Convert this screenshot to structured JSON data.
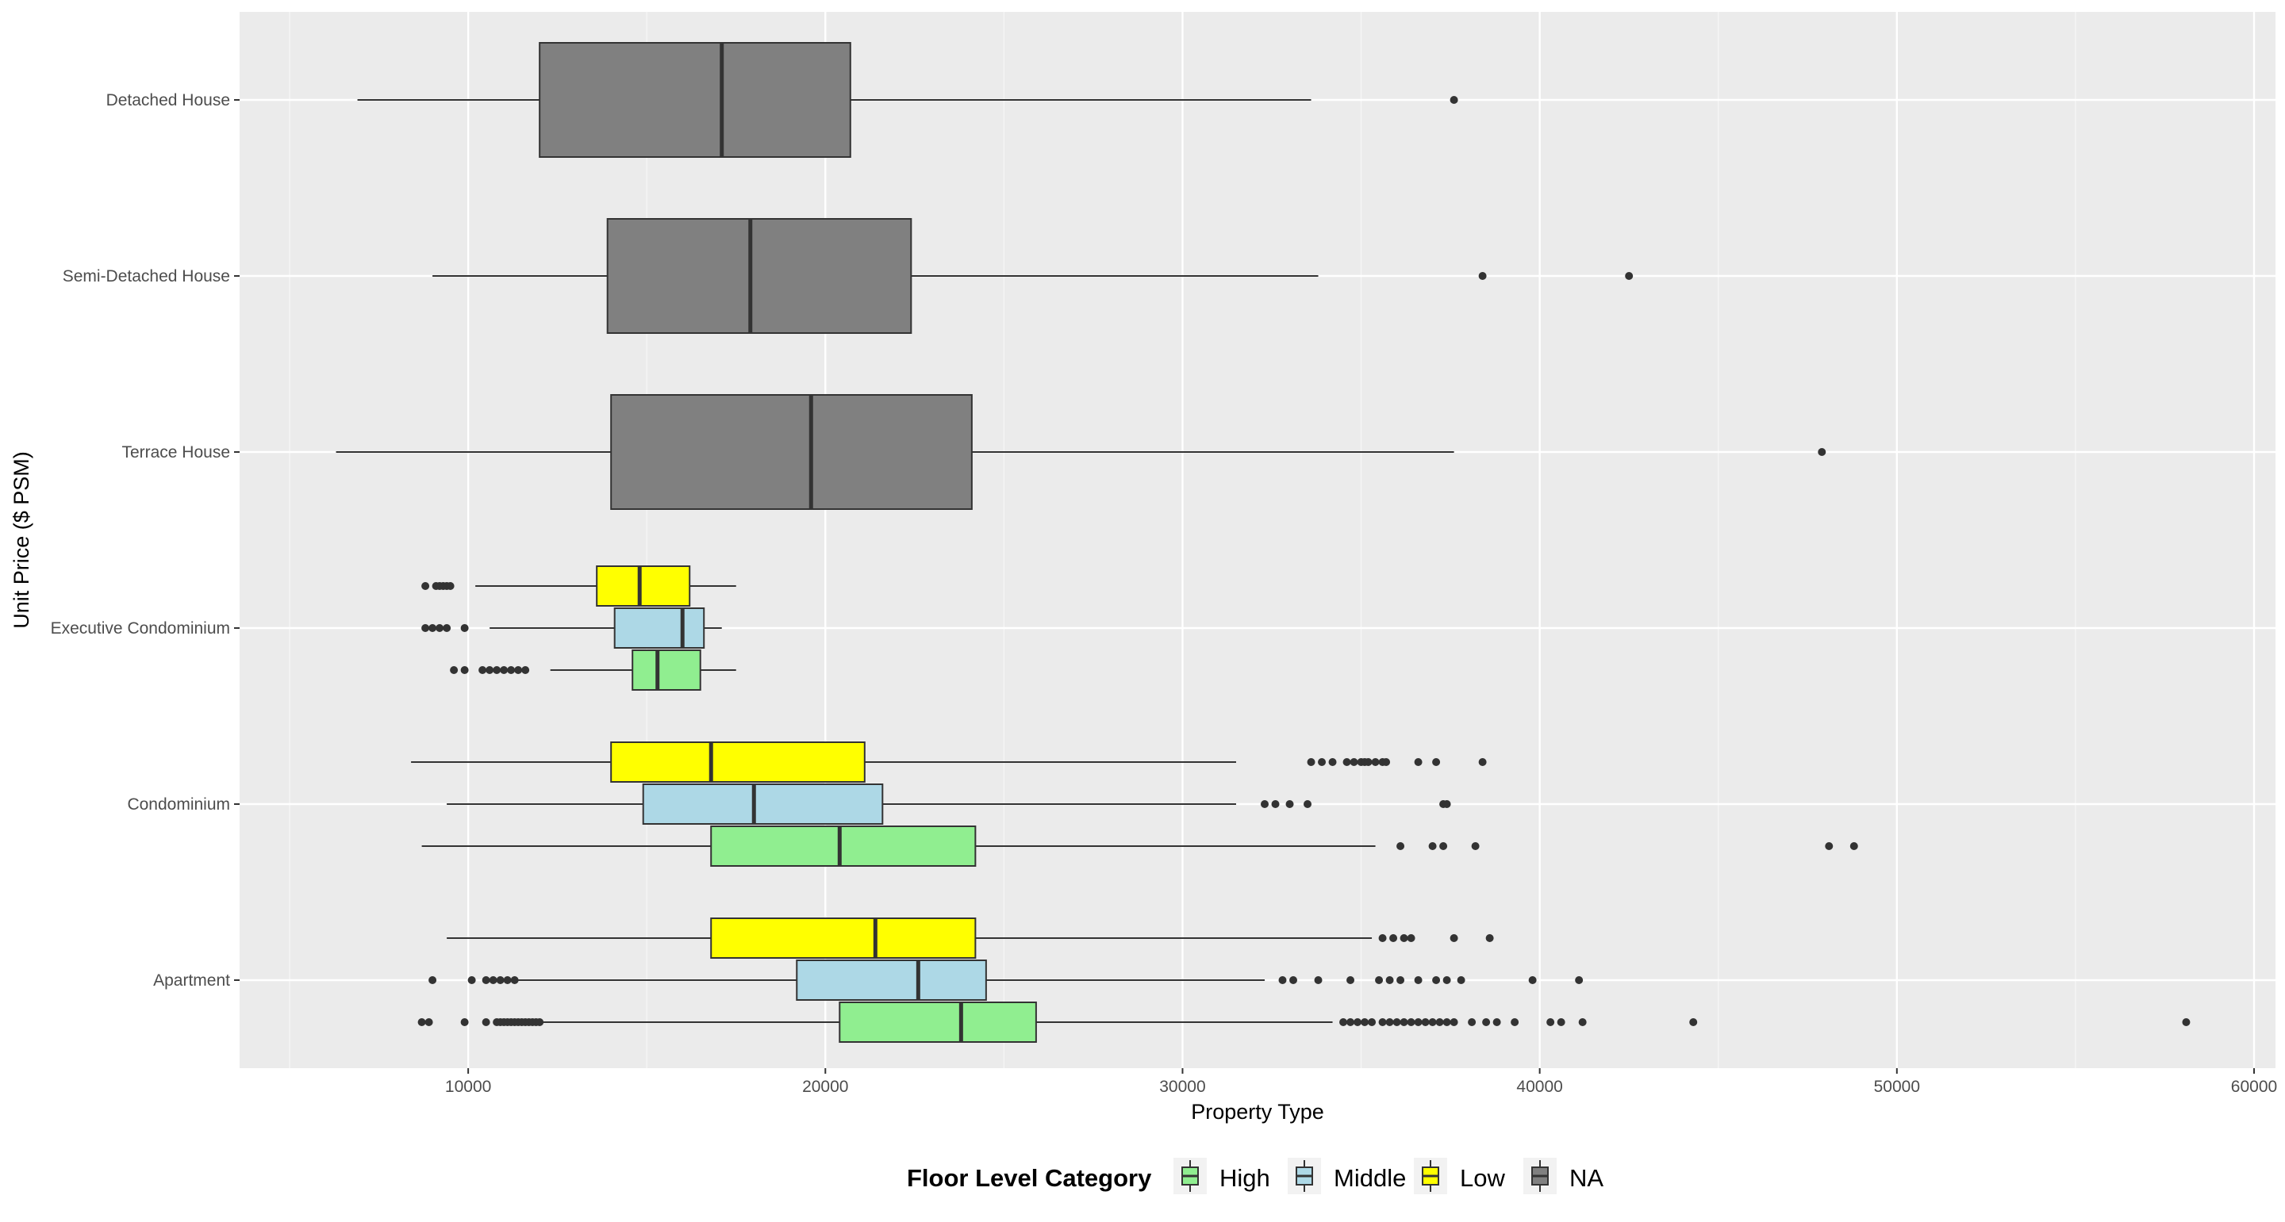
{
  "chart_data": {
    "type": "boxplot",
    "orientation": "horizontal",
    "xlabel": "Property Type",
    "ylabel": "Unit Price ($ PSM)",
    "xlim": [
      3600,
      60600
    ],
    "x_ticks": [
      10000,
      20000,
      30000,
      40000,
      50000,
      60000
    ],
    "categories": [
      "Detached House",
      "Semi-Detached House",
      "Terrace House",
      "Executive Condominium",
      "Condominium",
      "Apartment"
    ],
    "grid": true,
    "legend": {
      "title": "Floor Level Category",
      "position": "bottom",
      "items": [
        {
          "label": "High",
          "color": "#90EE90"
        },
        {
          "label": "Middle",
          "color": "#ADD8E6"
        },
        {
          "label": "Low",
          "color": "#FFFF00"
        },
        {
          "label": "NA",
          "color": "#808080"
        }
      ]
    },
    "boxes": [
      {
        "category": "Detached House",
        "group": "NA",
        "whisker_low": 6900,
        "q1": 12000,
        "median": 17100,
        "q3": 20700,
        "whisker_high": 33600,
        "outliers": [
          37600
        ]
      },
      {
        "category": "Semi-Detached House",
        "group": "NA",
        "whisker_low": 9000,
        "q1": 13900,
        "median": 17900,
        "q3": 22400,
        "whisker_high": 33800,
        "outliers": [
          38400,
          42500
        ]
      },
      {
        "category": "Terrace House",
        "group": "NA",
        "whisker_low": 6300,
        "q1": 14000,
        "median": 19600,
        "q3": 24100,
        "whisker_high": 37600,
        "outliers": [
          47900
        ]
      },
      {
        "category": "Executive Condominium",
        "group": "Low",
        "whisker_low": 10200,
        "q1": 13600,
        "median": 14800,
        "q3": 16200,
        "whisker_high": 17500,
        "outliers": [
          8800,
          9100,
          9200,
          9300,
          9400,
          9500
        ]
      },
      {
        "category": "Executive Condominium",
        "group": "Middle",
        "whisker_low": 10600,
        "q1": 14100,
        "median": 16000,
        "q3": 16600,
        "whisker_high": 17100,
        "outliers": [
          8800,
          9000,
          9200,
          9400,
          9900
        ]
      },
      {
        "category": "Executive Condominium",
        "group": "High",
        "whisker_low": 12300,
        "q1": 14600,
        "median": 15300,
        "q3": 16500,
        "whisker_high": 17500,
        "outliers": [
          9600,
          9900,
          10400,
          10600,
          10800,
          11000,
          11200,
          11400,
          11600
        ]
      },
      {
        "category": "Condominium",
        "group": "Low",
        "whisker_low": 8400,
        "q1": 14000,
        "median": 16800,
        "q3": 21100,
        "whisker_high": 31500,
        "outliers": [
          33600,
          33900,
          34200,
          34600,
          34800,
          35000,
          35100,
          35200,
          35400,
          35600,
          35700,
          36600,
          37100,
          38400
        ]
      },
      {
        "category": "Condominium",
        "group": "Middle",
        "whisker_low": 9400,
        "q1": 14900,
        "median": 18000,
        "q3": 21600,
        "whisker_high": 31500,
        "outliers": [
          32300,
          32600,
          33000,
          33500,
          37300,
          37400
        ]
      },
      {
        "category": "Condominium",
        "group": "High",
        "whisker_low": 8700,
        "q1": 16800,
        "median": 20400,
        "q3": 24200,
        "whisker_high": 35400,
        "outliers": [
          36100,
          37000,
          37300,
          38200,
          48100,
          48800
        ]
      },
      {
        "category": "Apartment",
        "group": "Low",
        "whisker_low": 9400,
        "q1": 16800,
        "median": 21400,
        "q3": 24200,
        "whisker_high": 35300,
        "outliers": [
          35600,
          35900,
          36200,
          36400,
          37600,
          38600
        ]
      },
      {
        "category": "Apartment",
        "group": "Middle",
        "whisker_low": 11400,
        "q1": 19200,
        "median": 22600,
        "q3": 24500,
        "whisker_high": 32300,
        "outliers": [
          9000,
          10100,
          10500,
          10700,
          10900,
          11100,
          11300,
          32800,
          33100,
          33800,
          34700,
          35500,
          35800,
          36100,
          36600,
          37100,
          37400,
          37800,
          39800,
          41100
        ]
      },
      {
        "category": "Apartment",
        "group": "High",
        "whisker_low": 12100,
        "q1": 20400,
        "median": 23800,
        "q3": 25900,
        "whisker_high": 34200,
        "outliers": [
          8700,
          8900,
          9900,
          10500,
          10800,
          10900,
          11000,
          11100,
          11200,
          11300,
          11400,
          11500,
          11600,
          11700,
          11800,
          11900,
          12000,
          34500,
          34700,
          34900,
          35100,
          35300,
          35600,
          35800,
          36000,
          36200,
          36400,
          36600,
          36800,
          37000,
          37200,
          37400,
          37600,
          38100,
          38500,
          38800,
          39300,
          40300,
          40600,
          41200,
          44300,
          58100
        ]
      }
    ]
  }
}
